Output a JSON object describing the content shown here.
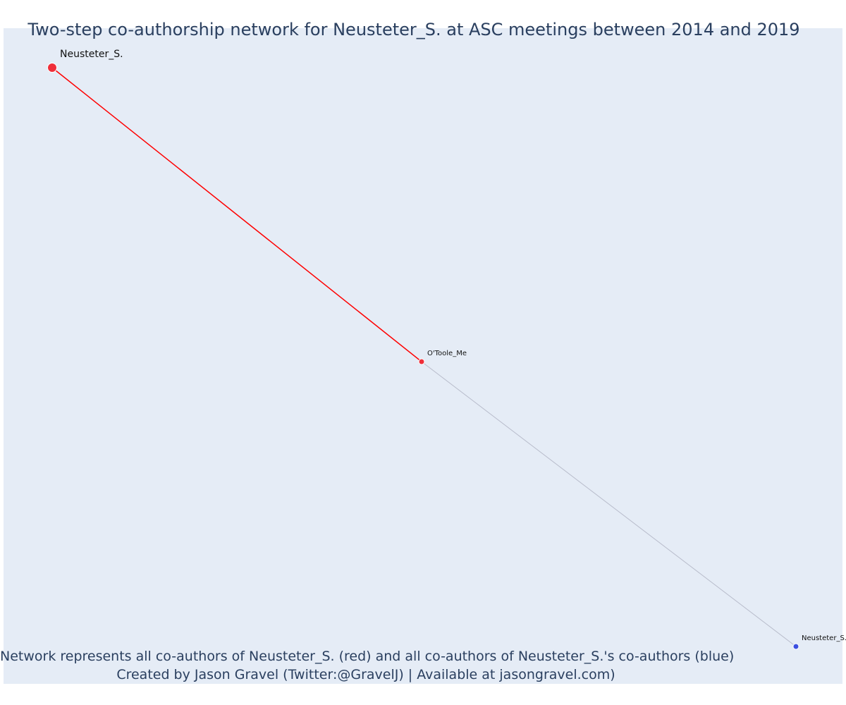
{
  "title": "Two-step co-authorship network for Neusteter_S. at ASC meetings between 2014 and 2019",
  "caption": {
    "line1": "Network represents all co-authors of Neusteter_S. (red) and all co-authors of Neusteter_S.'s co-authors (blue)",
    "line2": "Created by Jason Gravel (Twitter:@GravelJ) | Available at jasongravel.com)"
  },
  "colors": {
    "background": "#e5ecf6",
    "focal_node": "#ef2f3a",
    "coauthor_node": "#ef2f3a",
    "second_degree_node": "#3b4fe0",
    "focal_edge": "#ff0000",
    "other_edge": "#b8bccb",
    "text": "#2a3f5f"
  },
  "network": {
    "nodes": [
      {
        "id": "n1",
        "label": "Neusteter_S.",
        "group": "focal"
      },
      {
        "id": "n2",
        "label": "O'Toole_Me",
        "group": "coauthor"
      },
      {
        "id": "n3",
        "label": "Neusteter_S.",
        "group": "second_degree"
      }
    ],
    "edges": [
      {
        "source": "n1",
        "target": "n2",
        "type": "focal"
      },
      {
        "source": "n2",
        "target": "n3",
        "type": "other"
      }
    ]
  }
}
